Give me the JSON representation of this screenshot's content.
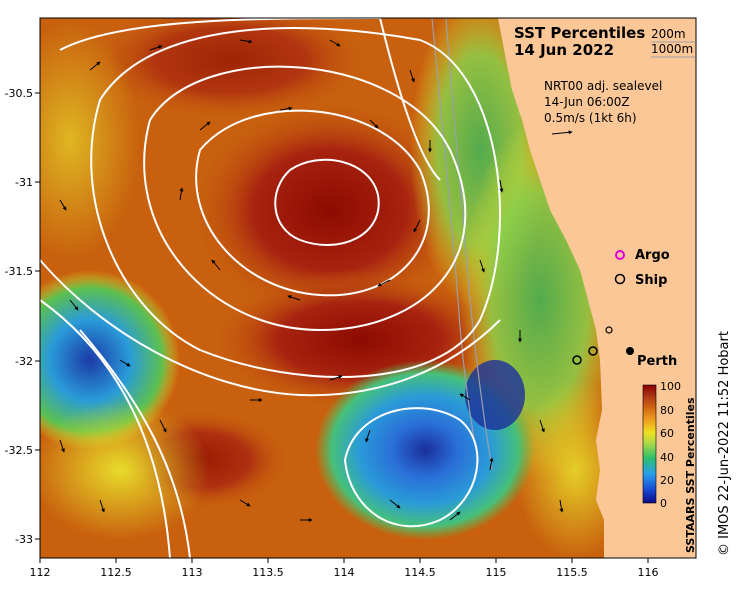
{
  "title": "SST Percentiles",
  "date": "14 Jun 2022",
  "bathymetry_legend": [
    "200m",
    "1000m"
  ],
  "current_info": {
    "model": "NRT00 adj. sealevel",
    "time": "14-Jun 06:00Z",
    "scale": "0.5m/s (1kt 6h)"
  },
  "legend_points": {
    "argo": "Argo",
    "ship": "Ship"
  },
  "city": "Perth",
  "colorbar": {
    "label": "SSTAARS SST Percentiles",
    "ticks": [
      "0",
      "20",
      "40",
      "60",
      "80",
      "100"
    ],
    "colors": [
      "#0b0b87",
      "#1a4fd6",
      "#2aa0ea",
      "#2fbf6a",
      "#a8d84a",
      "#f0e020",
      "#f0a020",
      "#d46a10",
      "#b03818",
      "#8a0000"
    ]
  },
  "x_axis": {
    "ticks": [
      "112",
      "112.5",
      "113",
      "113.5",
      "114",
      "114.5",
      "115",
      "115.5",
      "116"
    ]
  },
  "y_axis": {
    "ticks": [
      "-30.5",
      "-31",
      "-31.5",
      "-32",
      "-32.5",
      "-33"
    ]
  },
  "credit": "© IMOS 22-Jun-2022 11:52 Hobart",
  "colors": {
    "land": "#fbc797",
    "warm": "#c8600e",
    "hot": "#a82410",
    "cool": "#2a9bd8",
    "cold": "#1b2f9c",
    "green": "#5cc04e",
    "yellow": "#e8dc2a"
  }
}
